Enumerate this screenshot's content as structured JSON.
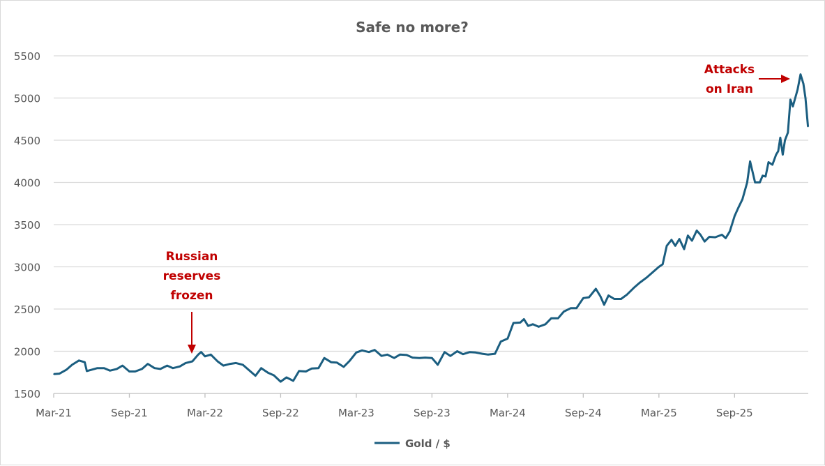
{
  "chart_data": {
    "type": "line",
    "title": "Safe no more?",
    "xlabel": "",
    "ylabel": "",
    "ylim": [
      1500,
      5500
    ],
    "yticks": [
      "1500",
      "2000",
      "2500",
      "3000",
      "3500",
      "4000",
      "4500",
      "5000",
      "5500"
    ],
    "xticks": [
      "Mar-21",
      "Sep-21",
      "Mar-22",
      "Sep-22",
      "Mar-23",
      "Sep-23",
      "Mar-24",
      "Sep-24",
      "Mar-25",
      "Sep-25"
    ],
    "grid": true,
    "legend_position": "bottom",
    "colors": {
      "series": "#1b5e80",
      "annotation": "#c00000",
      "grid": "#d9d9d9",
      "text": "#595959"
    },
    "series": [
      {
        "name": "Gold / $",
        "points": [
          [
            "2021-03-01",
            1730
          ],
          [
            "2021-03-15",
            1735
          ],
          [
            "2021-04-01",
            1780
          ],
          [
            "2021-04-15",
            1840
          ],
          [
            "2021-05-01",
            1890
          ],
          [
            "2021-05-15",
            1870
          ],
          [
            "2021-05-20",
            1765
          ],
          [
            "2021-06-01",
            1780
          ],
          [
            "2021-06-15",
            1800
          ],
          [
            "2021-07-01",
            1800
          ],
          [
            "2021-07-15",
            1770
          ],
          [
            "2021-08-01",
            1790
          ],
          [
            "2021-08-15",
            1830
          ],
          [
            "2021-09-01",
            1760
          ],
          [
            "2021-09-15",
            1760
          ],
          [
            "2021-10-01",
            1790
          ],
          [
            "2021-10-15",
            1850
          ],
          [
            "2021-11-01",
            1800
          ],
          [
            "2021-11-15",
            1790
          ],
          [
            "2021-12-01",
            1830
          ],
          [
            "2021-12-15",
            1800
          ],
          [
            "2022-01-01",
            1820
          ],
          [
            "2022-01-15",
            1860
          ],
          [
            "2022-02-01",
            1880
          ],
          [
            "2022-02-15",
            1960
          ],
          [
            "2022-02-22",
            1990
          ],
          [
            "2022-03-01",
            1940
          ],
          [
            "2022-03-15",
            1960
          ],
          [
            "2022-04-01",
            1880
          ],
          [
            "2022-04-15",
            1830
          ],
          [
            "2022-05-01",
            1850
          ],
          [
            "2022-05-15",
            1860
          ],
          [
            "2022-06-01",
            1840
          ],
          [
            "2022-06-15",
            1780
          ],
          [
            "2022-07-01",
            1710
          ],
          [
            "2022-07-15",
            1800
          ],
          [
            "2022-08-01",
            1745
          ],
          [
            "2022-08-15",
            1715
          ],
          [
            "2022-09-01",
            1640
          ],
          [
            "2022-09-15",
            1690
          ],
          [
            "2022-10-01",
            1650
          ],
          [
            "2022-10-15",
            1765
          ],
          [
            "2022-11-01",
            1760
          ],
          [
            "2022-11-15",
            1795
          ],
          [
            "2022-12-01",
            1800
          ],
          [
            "2022-12-15",
            1920
          ],
          [
            "2023-01-01",
            1870
          ],
          [
            "2023-01-15",
            1865
          ],
          [
            "2023-02-01",
            1815
          ],
          [
            "2023-02-15",
            1885
          ],
          [
            "2023-03-01",
            1985
          ],
          [
            "2023-03-15",
            2010
          ],
          [
            "2023-04-01",
            1990
          ],
          [
            "2023-04-15",
            2015
          ],
          [
            "2023-05-01",
            1945
          ],
          [
            "2023-05-15",
            1960
          ],
          [
            "2023-06-01",
            1920
          ],
          [
            "2023-06-15",
            1960
          ],
          [
            "2023-07-01",
            1955
          ],
          [
            "2023-07-15",
            1925
          ],
          [
            "2023-08-01",
            1920
          ],
          [
            "2023-08-15",
            1925
          ],
          [
            "2023-09-01",
            1920
          ],
          [
            "2023-09-15",
            1840
          ],
          [
            "2023-10-01",
            1990
          ],
          [
            "2023-10-15",
            1945
          ],
          [
            "2023-11-01",
            2000
          ],
          [
            "2023-11-15",
            1965
          ],
          [
            "2023-12-01",
            1990
          ],
          [
            "2023-12-15",
            1985
          ],
          [
            "2024-01-01",
            1970
          ],
          [
            "2024-01-15",
            1960
          ],
          [
            "2024-02-01",
            1970
          ],
          [
            "2024-02-15",
            2115
          ],
          [
            "2024-03-01",
            2150
          ],
          [
            "2024-03-15",
            2335
          ],
          [
            "2024-04-01",
            2340
          ],
          [
            "2024-04-10",
            2380
          ],
          [
            "2024-04-20",
            2300
          ],
          [
            "2024-05-01",
            2320
          ],
          [
            "2024-05-15",
            2290
          ],
          [
            "2024-06-01",
            2320
          ],
          [
            "2024-06-15",
            2390
          ],
          [
            "2024-07-01",
            2390
          ],
          [
            "2024-07-15",
            2470
          ],
          [
            "2024-08-01",
            2510
          ],
          [
            "2024-08-15",
            2510
          ],
          [
            "2024-09-01",
            2630
          ],
          [
            "2024-09-15",
            2640
          ],
          [
            "2024-10-01",
            2740
          ],
          [
            "2024-10-12",
            2650
          ],
          [
            "2024-10-21",
            2550
          ],
          [
            "2024-11-01",
            2660
          ],
          [
            "2024-11-15",
            2620
          ],
          [
            "2024-12-01",
            2620
          ],
          [
            "2024-12-15",
            2670
          ],
          [
            "2025-01-01",
            2750
          ],
          [
            "2025-01-15",
            2810
          ],
          [
            "2025-02-01",
            2870
          ],
          [
            "2025-02-15",
            2930
          ],
          [
            "2025-03-01",
            3000
          ],
          [
            "2025-03-10",
            3030
          ],
          [
            "2025-03-20",
            3250
          ],
          [
            "2025-04-01",
            3320
          ],
          [
            "2025-04-10",
            3250
          ],
          [
            "2025-04-20",
            3330
          ],
          [
            "2025-05-01",
            3210
          ],
          [
            "2025-05-10",
            3370
          ],
          [
            "2025-05-20",
            3310
          ],
          [
            "2025-06-01",
            3430
          ],
          [
            "2025-06-10",
            3380
          ],
          [
            "2025-06-20",
            3300
          ],
          [
            "2025-07-01",
            3355
          ],
          [
            "2025-07-15",
            3350
          ],
          [
            "2025-08-01",
            3380
          ],
          [
            "2025-08-10",
            3340
          ],
          [
            "2025-08-20",
            3420
          ],
          [
            "2025-09-01",
            3600
          ],
          [
            "2025-09-10",
            3700
          ],
          [
            "2025-09-20",
            3800
          ],
          [
            "2025-10-01",
            4000
          ],
          [
            "2025-10-08",
            4250
          ],
          [
            "2025-10-20",
            4000
          ],
          [
            "2025-11-01",
            4000
          ],
          [
            "2025-11-08",
            4080
          ],
          [
            "2025-11-15",
            4070
          ],
          [
            "2025-11-22",
            4240
          ],
          [
            "2025-12-01",
            4210
          ],
          [
            "2025-12-10",
            4330
          ],
          [
            "2025-12-15",
            4370
          ],
          [
            "2025-12-20",
            4530
          ],
          [
            "2025-12-26",
            4330
          ],
          [
            "2026-01-01",
            4500
          ],
          [
            "2026-01-08",
            4590
          ],
          [
            "2026-01-14",
            4980
          ],
          [
            "2026-01-20",
            4900
          ],
          [
            "2026-02-01",
            5100
          ],
          [
            "2026-02-08",
            5280
          ],
          [
            "2026-02-15",
            5170
          ],
          [
            "2026-02-20",
            5000
          ],
          [
            "2026-02-26",
            4660
          ]
        ]
      }
    ],
    "annotations": [
      {
        "lines": [
          "Russian",
          "reserves",
          "frozen"
        ],
        "date": "2022-02-24",
        "arrow": "down"
      },
      {
        "lines": [
          "Attacks",
          "on Iran"
        ],
        "date": "2026-02-08",
        "arrow": "right"
      }
    ]
  }
}
